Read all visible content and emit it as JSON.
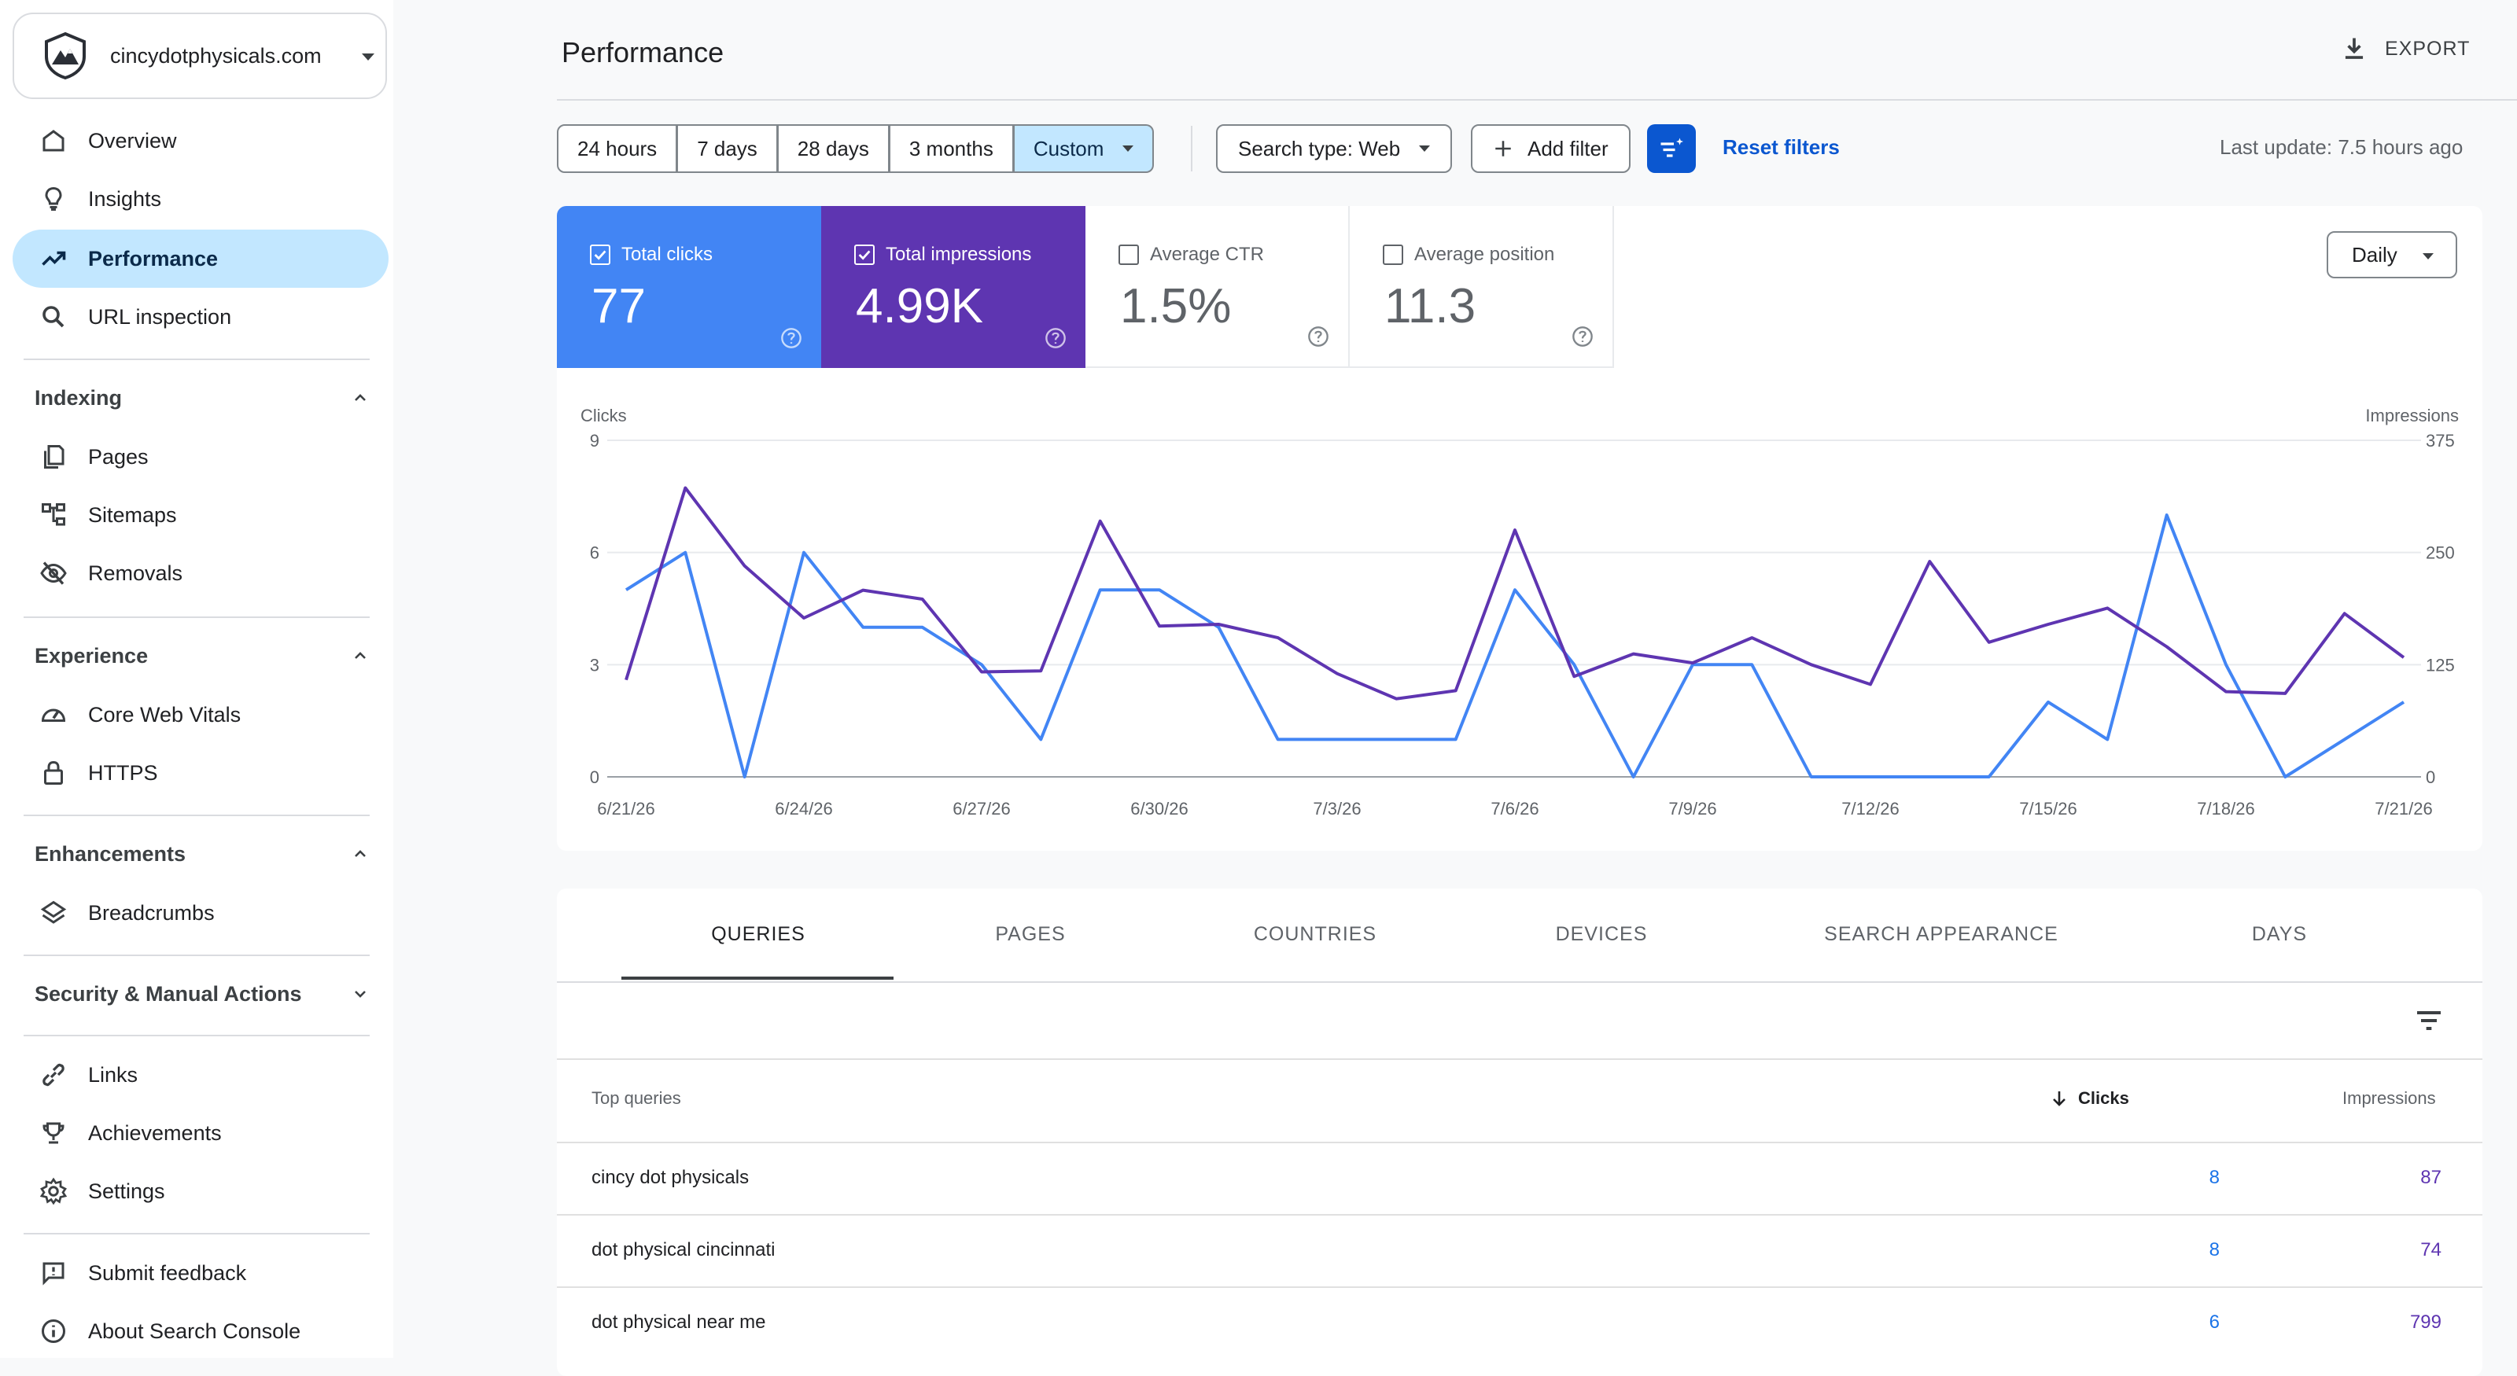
{
  "property": {
    "name": "cincydotphysicals.com"
  },
  "nav": {
    "overview": "Overview",
    "insights": "Insights",
    "performance": "Performance",
    "url_inspection": "URL inspection",
    "indexing": "Indexing",
    "pages": "Pages",
    "sitemaps": "Sitemaps",
    "removals": "Removals",
    "experience": "Experience",
    "core_web_vitals": "Core Web Vitals",
    "https": "HTTPS",
    "enhancements": "Enhancements",
    "breadcrumbs": "Breadcrumbs",
    "security": "Security & Manual Actions",
    "links": "Links",
    "achievements": "Achievements",
    "settings": "Settings",
    "submit_feedback": "Submit feedback",
    "about": "About Search Console"
  },
  "header": {
    "title": "Performance",
    "export": "EXPORT"
  },
  "toolbar": {
    "ranges": [
      "24 hours",
      "7 days",
      "28 days",
      "3 months",
      "Custom"
    ],
    "selected_range": "Custom",
    "search_type": "Search type: Web",
    "add_filter": "Add filter",
    "reset": "Reset filters",
    "last_update": "Last update: 7.5 hours ago"
  },
  "metrics": {
    "clicks": {
      "label": "Total clicks",
      "value": "77",
      "checked": true,
      "color": "#4285f4"
    },
    "impressions": {
      "label": "Total impressions",
      "value": "4.99K",
      "checked": true,
      "color": "#5e35b1"
    },
    "ctr": {
      "label": "Average CTR",
      "value": "1.5%",
      "checked": false
    },
    "position": {
      "label": "Average position",
      "value": "11.3",
      "checked": false
    }
  },
  "granularity": "Daily",
  "chart_data": {
    "type": "line",
    "ylabel": "Clicks",
    "y2label": "Impressions",
    "ylim": [
      0,
      9
    ],
    "y2lim": [
      0,
      375
    ],
    "yticks": [
      0,
      3,
      6,
      9
    ],
    "y2ticks": [
      0,
      125,
      250,
      375
    ],
    "x": [
      "6/21/26",
      "6/22/26",
      "6/23/26",
      "6/24/26",
      "6/25/26",
      "6/26/26",
      "6/27/26",
      "6/28/26",
      "6/29/26",
      "6/30/26",
      "7/1/26",
      "7/2/26",
      "7/3/26",
      "7/4/26",
      "7/5/26",
      "7/6/26",
      "7/7/26",
      "7/8/26",
      "7/9/26",
      "7/10/26",
      "7/11/26",
      "7/12/26",
      "7/13/26",
      "7/14/26",
      "7/15/26",
      "7/16/26",
      "7/17/26",
      "7/18/26",
      "7/19/26",
      "7/20/26",
      "7/21/26"
    ],
    "xticks": [
      "6/21/26",
      "6/24/26",
      "6/27/26",
      "6/30/26",
      "7/3/26",
      "7/6/26",
      "7/9/26",
      "7/12/26",
      "7/15/26",
      "7/18/26",
      "7/21/26"
    ],
    "series": [
      {
        "name": "Clicks",
        "axis": "left",
        "color": "#4285f4",
        "values": [
          5,
          6,
          0,
          6,
          4,
          4,
          3,
          1,
          5,
          5,
          4,
          1,
          1,
          1,
          1,
          5,
          3,
          0,
          3,
          3,
          0,
          0,
          0,
          0,
          2,
          1,
          7,
          3,
          0,
          1,
          2
        ]
      },
      {
        "name": "Impressions",
        "axis": "right",
        "color": "#5e35b1",
        "values": [
          108,
          322,
          235,
          177,
          208,
          198,
          117,
          118,
          285,
          168,
          170,
          155,
          115,
          87,
          96,
          275,
          112,
          137,
          127,
          155,
          125,
          103,
          240,
          150,
          170,
          188,
          145,
          95,
          93,
          182,
          133
        ]
      }
    ]
  },
  "tabs": [
    "QUERIES",
    "PAGES",
    "COUNTRIES",
    "DEVICES",
    "SEARCH APPEARANCE",
    "DAYS"
  ],
  "table": {
    "col_query": "Top queries",
    "col_clicks": "Clicks",
    "col_impressions": "Impressions",
    "rows": [
      {
        "query": "cincy dot physicals",
        "clicks": "8",
        "impressions": "87"
      },
      {
        "query": "dot physical cincinnati",
        "clicks": "8",
        "impressions": "74"
      },
      {
        "query": "dot physical near me",
        "clicks": "6",
        "impressions": "799"
      }
    ]
  }
}
